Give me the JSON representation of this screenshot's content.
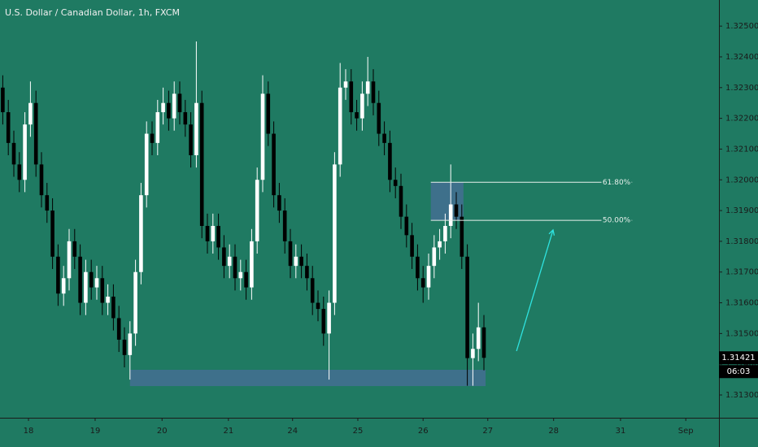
{
  "chart_data": {
    "type": "candlestick",
    "title": "U.S. Dollar / Canadian Dollar, 1h, FXCM",
    "up_color": "#ffffff",
    "down_color": "#000000",
    "background": "#1f7a62",
    "xlim": [
      -0.5,
      129.5
    ],
    "ylim": [
      1.31226,
      1.32585
    ],
    "grid": false,
    "xticks": [
      {
        "value": 4.65,
        "label": "18"
      },
      {
        "value": 16.7,
        "label": "19"
      },
      {
        "value": 28.8,
        "label": "20"
      },
      {
        "value": 40.8,
        "label": "21"
      },
      {
        "value": 52.4,
        "label": "24"
      },
      {
        "value": 64.2,
        "label": "25"
      },
      {
        "value": 76,
        "label": "26"
      },
      {
        "value": 87.7,
        "label": "27"
      },
      {
        "value": 99.6,
        "label": "28"
      },
      {
        "value": 111.7,
        "label": "31"
      },
      {
        "value": 123.5,
        "label": "Sep"
      }
    ],
    "yticks": [
      {
        "value": 1.313,
        "label": "1.31300"
      },
      {
        "value": 1.314,
        "label": "1.31400"
      },
      {
        "value": 1.315,
        "label": "1.31500"
      },
      {
        "value": 1.316,
        "label": "1.31600"
      },
      {
        "value": 1.317,
        "label": "1.31700"
      },
      {
        "value": 1.318,
        "label": "1.31800"
      },
      {
        "value": 1.319,
        "label": "1.31900"
      },
      {
        "value": 1.32,
        "label": "1.32000"
      },
      {
        "value": 1.321,
        "label": "1.32100"
      },
      {
        "value": 1.322,
        "label": "1.32200"
      },
      {
        "value": 1.323,
        "label": "1.32300"
      },
      {
        "value": 1.324,
        "label": "1.32400"
      },
      {
        "value": 1.325,
        "label": "1.32500"
      }
    ],
    "open": [
      1.323,
      1.3222,
      1.3212,
      1.3205,
      1.32,
      1.3218,
      1.3225,
      1.3205,
      1.3195,
      1.319,
      1.3175,
      1.3163,
      1.3168,
      1.318,
      1.3175,
      1.316,
      1.317,
      1.3165,
      1.3168,
      1.316,
      1.3162,
      1.3155,
      1.3148,
      1.3143,
      1.315,
      1.317,
      1.3195,
      1.3215,
      1.3212,
      1.3222,
      1.3225,
      1.322,
      1.3228,
      1.3222,
      1.3218,
      1.3208,
      1.3225,
      1.3185,
      1.318,
      1.3185,
      1.3178,
      1.3172,
      1.3175,
      1.3168,
      1.317,
      1.3165,
      1.318,
      1.32,
      1.3228,
      1.3215,
      1.3195,
      1.319,
      1.318,
      1.3172,
      1.3175,
      1.3172,
      1.3168,
      1.316,
      1.3158,
      1.315,
      1.316,
      1.3205,
      1.323,
      1.3232,
      1.3222,
      1.322,
      1.3228,
      1.3232,
      1.3225,
      1.3215,
      1.3212,
      1.32,
      1.3198,
      1.3188,
      1.3182,
      1.3175,
      1.3168,
      1.3165,
      1.3172,
      1.3178,
      1.318,
      1.3185,
      1.3192,
      1.3188,
      1.3175,
      1.3142,
      1.3145,
      1.3152
    ],
    "high": [
      1.3234,
      1.3226,
      1.3216,
      1.3209,
      1.3222,
      1.3232,
      1.3229,
      1.3209,
      1.3199,
      1.3194,
      1.3179,
      1.3172,
      1.3184,
      1.3184,
      1.3179,
      1.3174,
      1.3174,
      1.3172,
      1.3172,
      1.3166,
      1.3166,
      1.3159,
      1.3152,
      1.3154,
      1.3174,
      1.3199,
      1.3219,
      1.3219,
      1.3226,
      1.323,
      1.3229,
      1.3232,
      1.3232,
      1.3226,
      1.3222,
      1.3245,
      1.3229,
      1.3189,
      1.3189,
      1.3189,
      1.3182,
      1.3179,
      1.3179,
      1.3174,
      1.3174,
      1.3184,
      1.3204,
      1.3234,
      1.3232,
      1.3219,
      1.3199,
      1.3194,
      1.3184,
      1.3179,
      1.3179,
      1.3176,
      1.3172,
      1.3164,
      1.3162,
      1.3164,
      1.3209,
      1.3238,
      1.3236,
      1.3236,
      1.3226,
      1.3232,
      1.324,
      1.3236,
      1.3229,
      1.3219,
      1.3216,
      1.3204,
      1.3202,
      1.3192,
      1.3186,
      1.3179,
      1.3172,
      1.3176,
      1.3182,
      1.3184,
      1.3189,
      1.3205,
      1.3196,
      1.3192,
      1.3179,
      1.315,
      1.316,
      1.3156
    ],
    "low": [
      1.3218,
      1.3208,
      1.3201,
      1.3196,
      1.3196,
      1.3214,
      1.3201,
      1.3191,
      1.3186,
      1.3171,
      1.3159,
      1.3159,
      1.3164,
      1.3171,
      1.3156,
      1.3156,
      1.3161,
      1.3161,
      1.3156,
      1.3156,
      1.3151,
      1.3144,
      1.3139,
      1.3135,
      1.3146,
      1.3166,
      1.3191,
      1.3208,
      1.3208,
      1.3218,
      1.3216,
      1.3216,
      1.3218,
      1.3214,
      1.3204,
      1.3204,
      1.3181,
      1.3176,
      1.3176,
      1.3174,
      1.3168,
      1.3168,
      1.3164,
      1.3164,
      1.3161,
      1.3161,
      1.3176,
      1.3196,
      1.3211,
      1.3191,
      1.3186,
      1.3176,
      1.3168,
      1.3168,
      1.3168,
      1.3164,
      1.3156,
      1.3154,
      1.3146,
      1.3135,
      1.3156,
      1.3201,
      1.3226,
      1.3218,
      1.3216,
      1.3216,
      1.3224,
      1.3221,
      1.3211,
      1.3208,
      1.3196,
      1.3194,
      1.3184,
      1.3178,
      1.3171,
      1.3164,
      1.316,
      1.3161,
      1.3168,
      1.3174,
      1.3176,
      1.3181,
      1.3184,
      1.3171,
      1.3133,
      1.3133,
      1.3141,
      1.3138
    ],
    "close": [
      1.3222,
      1.3212,
      1.3205,
      1.32,
      1.3218,
      1.3225,
      1.3205,
      1.3195,
      1.319,
      1.3175,
      1.3163,
      1.3168,
      1.318,
      1.3175,
      1.316,
      1.317,
      1.3165,
      1.3168,
      1.316,
      1.3162,
      1.3155,
      1.3148,
      1.3143,
      1.315,
      1.317,
      1.3195,
      1.3215,
      1.3212,
      1.3222,
      1.3225,
      1.322,
      1.3228,
      1.3222,
      1.3218,
      1.3208,
      1.3225,
      1.3185,
      1.318,
      1.3185,
      1.3178,
      1.3172,
      1.3175,
      1.3168,
      1.317,
      1.3165,
      1.318,
      1.32,
      1.3228,
      1.3215,
      1.3195,
      1.319,
      1.318,
      1.3172,
      1.3175,
      1.3172,
      1.3168,
      1.316,
      1.3158,
      1.315,
      1.316,
      1.3205,
      1.323,
      1.3232,
      1.3222,
      1.322,
      1.3228,
      1.3232,
      1.3225,
      1.3215,
      1.3212,
      1.32,
      1.3198,
      1.3188,
      1.3182,
      1.3175,
      1.3168,
      1.3165,
      1.3172,
      1.3178,
      1.318,
      1.3185,
      1.3192,
      1.3188,
      1.3175,
      1.3142,
      1.3145,
      1.3152,
      1.31421
    ],
    "fib": {
      "levels": [
        {
          "label": "61.80%",
          "price": 1.31992
        },
        {
          "label": "50.00%",
          "price": 1.31868
        }
      ],
      "x": [
        77.4,
        113.8
      ],
      "box_x": [
        77.4,
        83.3
      ],
      "color": "#e8f0ec",
      "box_color": "#4a6e9a"
    },
    "zone": {
      "x": [
        23,
        87.3
      ],
      "y": [
        1.31329,
        1.31382
      ],
      "color": "#4a6e9a"
    },
    "arrow": {
      "x": [
        92.9,
        99.5
      ],
      "y": [
        1.31443,
        1.31837
      ],
      "color": "#2fe3e0"
    },
    "last_price": {
      "value": 1.31421,
      "label": "1.31421",
      "countdown": "06:03"
    }
  }
}
